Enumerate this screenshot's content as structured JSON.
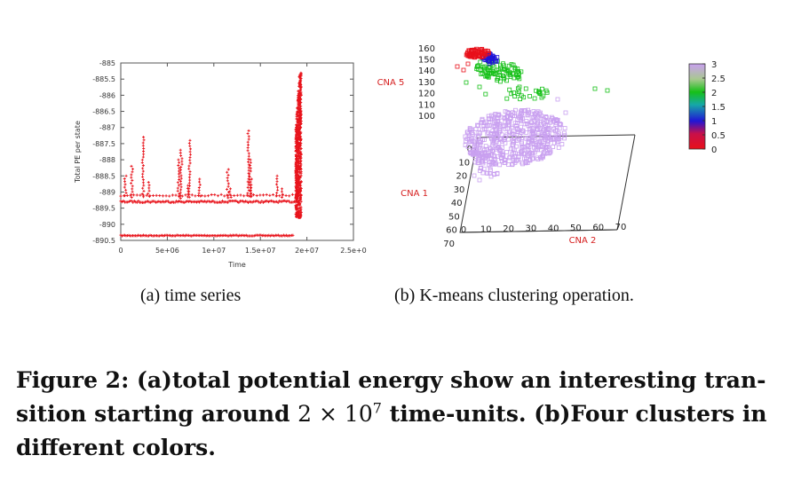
{
  "captions": {
    "a": "(a)  time series",
    "b": "(b)  K-means clustering operation.",
    "main": {
      "prefix": "Figure 2: (a)total potential energy show an interesting tran-sition starting around",
      "math_base": "2 × 10",
      "math_exp": "7",
      "suffix": "time-units. (b)Four clusters in different colors."
    }
  },
  "chart_data": [
    {
      "type": "scatter",
      "xlabel": "Time",
      "ylabel": "Total PE per state",
      "xlim": [
        0,
        25000000
      ],
      "ylim": [
        -890.5,
        -885
      ],
      "x_tick_labels": [
        "0",
        "5e+06",
        "1e+07",
        "1.5e+07",
        "2e+07",
        "2.5e+0"
      ],
      "y_tick_labels": [
        "-885",
        "-885.5",
        "-886",
        "-886.5",
        "-887",
        "-887.5",
        "-888",
        "-888.5",
        "-889",
        "-889.5",
        "-890",
        "-890.5"
      ],
      "marker_color": "#e8141c",
      "series": [
        {
          "band": "low",
          "y": -890.35,
          "x_range": [
            0,
            18500000
          ]
        },
        {
          "band": "mid",
          "y": -889.3,
          "x_range": [
            0,
            18800000
          ]
        },
        {
          "band": "mid-upper",
          "y": -889.1,
          "x_range": [
            0,
            18800000
          ]
        },
        {
          "band": "spikes",
          "points": [
            [
              500000,
              -888.5
            ],
            [
              1200000,
              -888.2
            ],
            [
              2400000,
              -887.3
            ],
            [
              3000000,
              -888.7
            ],
            [
              6200000,
              -888.0
            ],
            [
              6500000,
              -887.7
            ],
            [
              7200000,
              -888.8
            ],
            [
              7400000,
              -887.4
            ],
            [
              8500000,
              -888.6
            ],
            [
              11500000,
              -888.3
            ],
            [
              11800000,
              -888.9
            ],
            [
              13700000,
              -887.1
            ],
            [
              13900000,
              -888.0
            ],
            [
              14000000,
              -888.6
            ],
            [
              16800000,
              -888.5
            ],
            [
              17300000,
              -888.9
            ]
          ]
        },
        {
          "band": "transition",
          "x_range": [
            18800000,
            19400000
          ],
          "y_range": [
            -889.8,
            -885.3
          ]
        }
      ]
    },
    {
      "type": "scatter",
      "projection": "3d",
      "axes": {
        "cna5": {
          "label": "CNA 5",
          "ticks": [
            "100",
            "110",
            "120",
            "130",
            "140",
            "150",
            "160"
          ]
        },
        "cna1": {
          "label": "CNA 1",
          "ticks": [
            "0",
            "10",
            "20",
            "30",
            "40",
            "50",
            "60",
            "70"
          ]
        },
        "cna2": {
          "label": "CNA 2",
          "ticks": [
            "0",
            "10",
            "20",
            "30",
            "40",
            "50",
            "60",
            "70"
          ]
        }
      },
      "colorbar": {
        "ticks": [
          "0",
          "0.5",
          "1",
          "1.5",
          "2",
          "2.5",
          "3"
        ],
        "range": [
          0,
          3
        ],
        "colors": [
          "#e8101a",
          "#2016d6",
          "#16c018",
          "#c9a0f0"
        ]
      },
      "clusters": [
        {
          "id": 0,
          "color": "#e8101a",
          "approx_cna5": 155,
          "approx_cna1": 5,
          "approx_cna2": 2
        },
        {
          "id": 1,
          "color": "#2016d6",
          "approx_cna5": 150,
          "approx_cna1": 8,
          "approx_cna2": 4
        },
        {
          "id": 2,
          "color": "#16c018",
          "approx_cna5": 135,
          "approx_cna1": 10,
          "approx_cna2": 6
        },
        {
          "id": 3,
          "color": "#c9a0f0",
          "approx_cna5": 100,
          "approx_cna1": 40,
          "approx_cna2": 15
        }
      ]
    }
  ]
}
